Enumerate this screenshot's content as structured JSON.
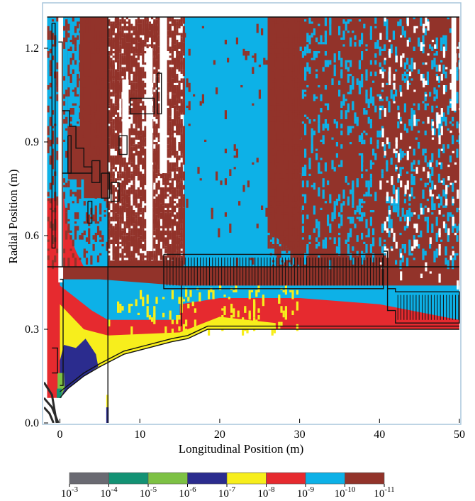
{
  "chart_data": {
    "type": "heatmap",
    "xlabel": "Longitudinal Position (m)",
    "ylabel": "Radial Position (m)",
    "xlim": [
      -2,
      50
    ],
    "ylim": [
      0,
      1.3
    ],
    "x_ticks": [
      {
        "v": 0,
        "label": "0"
      },
      {
        "v": 10,
        "label": "10"
      },
      {
        "v": 20,
        "label": "20"
      },
      {
        "v": 30,
        "label": "30"
      },
      {
        "v": 40,
        "label": "40"
      },
      {
        "v": 50,
        "label": "50"
      }
    ],
    "y_ticks": [
      {
        "v": 0,
        "label": "0.0"
      },
      {
        "v": 0.3,
        "label": "0.3"
      },
      {
        "v": 0.6,
        "label": "0.6"
      },
      {
        "v": 0.9,
        "label": "0.9"
      },
      {
        "v": 1.2,
        "label": "1.2"
      }
    ],
    "colorbar": {
      "colors": [
        "#6a6a72",
        "#139274",
        "#7dc144",
        "#2b2c8e",
        "#f7ee1c",
        "#e62a2f",
        "#0db1e7",
        "#92332a"
      ],
      "labels": [
        {
          "base": "10",
          "exp": "-3"
        },
        {
          "base": "10",
          "exp": "-4"
        },
        {
          "base": "10",
          "exp": "-5"
        },
        {
          "base": "10",
          "exp": "-6"
        },
        {
          "base": "10",
          "exp": "-7"
        },
        {
          "base": "10",
          "exp": "-8"
        },
        {
          "base": "10",
          "exp": "-9"
        },
        {
          "base": "10",
          "exp": "-10"
        },
        {
          "base": "10",
          "exp": "-11"
        }
      ]
    },
    "colors": {
      "brown": "#92332a",
      "cyan": "#0db1e7",
      "red": "#e62a2f",
      "yellow": "#f7ee1c",
      "navy": "#2b2c8e",
      "green": "#7dc144",
      "teal": "#139274",
      "gray": "#6a6a72",
      "frame": "#a9c6dc"
    },
    "regions": [
      {
        "color": "brown",
        "pts": [
          [
            -1.6,
            1.3
          ],
          [
            50,
            1.3
          ],
          [
            50,
            0.5
          ],
          [
            -1.6,
            0.5
          ]
        ]
      },
      {
        "color": "cyan",
        "pts": [
          [
            -1.6,
            1.3
          ],
          [
            1,
            1.3
          ],
          [
            1,
            0.78
          ],
          [
            3,
            0.78
          ],
          [
            3,
            0.72
          ],
          [
            6,
            0.72
          ],
          [
            6,
            0.5
          ],
          [
            -1.6,
            0.5
          ]
        ]
      },
      {
        "color": "cyan",
        "pts": [
          [
            15.5,
            1.3
          ],
          [
            26,
            1.3
          ],
          [
            26,
            0.62
          ],
          [
            29,
            0.55
          ],
          [
            30,
            0.5
          ],
          [
            15.5,
            0.5
          ]
        ]
      },
      {
        "color": "cyan",
        "pts": [
          [
            1,
            1.3
          ],
          [
            2.5,
            1.3
          ],
          [
            2.5,
            0.95
          ],
          [
            1,
            0.95
          ]
        ]
      },
      {
        "color": "red",
        "pts": [
          [
            -1.6,
            0.72
          ],
          [
            0.5,
            0.72
          ],
          [
            1,
            0.62
          ],
          [
            2,
            0.55
          ],
          [
            3,
            0.5
          ],
          [
            -1.6,
            0.5
          ]
        ]
      },
      {
        "color": "red",
        "pts": [
          [
            -1.6,
            0.5
          ],
          [
            0,
            0.5
          ],
          [
            0,
            0.08
          ],
          [
            -1.6,
            0.08
          ]
        ]
      },
      {
        "color": "brown",
        "pts": [
          [
            0,
            0.5
          ],
          [
            50,
            0.5
          ],
          [
            50,
            0.3
          ],
          [
            40,
            0.3
          ],
          [
            25,
            0.3
          ],
          [
            18.5,
            0.3
          ],
          [
            16,
            0.27
          ],
          [
            14,
            0.26
          ],
          [
            11,
            0.24
          ],
          [
            8,
            0.22
          ],
          [
            5,
            0.18
          ],
          [
            3,
            0.15
          ],
          [
            2,
            0.13
          ],
          [
            1,
            0.11
          ],
          [
            0,
            0.08
          ]
        ]
      },
      {
        "color": "cyan",
        "pts": [
          [
            0,
            0.46
          ],
          [
            5,
            0.46
          ],
          [
            15,
            0.44
          ],
          [
            25,
            0.44
          ],
          [
            35,
            0.44
          ],
          [
            50,
            0.44
          ],
          [
            50,
            0.3
          ],
          [
            25,
            0.3
          ],
          [
            18.5,
            0.3
          ],
          [
            16,
            0.27
          ],
          [
            14,
            0.26
          ],
          [
            11,
            0.24
          ],
          [
            8,
            0.22
          ],
          [
            5,
            0.18
          ],
          [
            3,
            0.15
          ],
          [
            2,
            0.13
          ],
          [
            1,
            0.11
          ],
          [
            0,
            0.08
          ]
        ]
      },
      {
        "color": "red",
        "pts": [
          [
            0,
            0.44
          ],
          [
            2,
            0.4
          ],
          [
            4,
            0.36
          ],
          [
            6,
            0.33
          ],
          [
            15,
            0.33
          ],
          [
            15,
            0.38
          ],
          [
            20,
            0.4
          ],
          [
            30,
            0.4
          ],
          [
            40,
            0.38
          ],
          [
            50,
            0.33
          ],
          [
            50,
            0.3
          ],
          [
            25,
            0.3
          ],
          [
            18.5,
            0.3
          ],
          [
            16,
            0.27
          ],
          [
            14,
            0.26
          ],
          [
            11,
            0.24
          ],
          [
            8,
            0.22
          ],
          [
            5,
            0.18
          ],
          [
            3,
            0.15
          ],
          [
            2,
            0.13
          ],
          [
            1,
            0.11
          ],
          [
            0,
            0.08
          ]
        ]
      },
      {
        "color": "yellow",
        "pts": [
          [
            0,
            0.38
          ],
          [
            1.5,
            0.34
          ],
          [
            3,
            0.3
          ],
          [
            6,
            0.28
          ],
          [
            15,
            0.29
          ],
          [
            20,
            0.34
          ],
          [
            27,
            0.32
          ],
          [
            27,
            0.3
          ],
          [
            18.5,
            0.3
          ],
          [
            16,
            0.27
          ],
          [
            14,
            0.26
          ],
          [
            11,
            0.24
          ],
          [
            8,
            0.22
          ],
          [
            5,
            0.18
          ],
          [
            3,
            0.15
          ],
          [
            2,
            0.13
          ],
          [
            1,
            0.11
          ],
          [
            0,
            0.08
          ]
        ]
      },
      {
        "color": "navy",
        "pts": [
          [
            0.5,
            0.25
          ],
          [
            2,
            0.24
          ],
          [
            3.2,
            0.27
          ],
          [
            4.5,
            0.22
          ],
          [
            4.8,
            0.18
          ],
          [
            3,
            0.15
          ],
          [
            2,
            0.13
          ],
          [
            1,
            0.11
          ],
          [
            0.3,
            0.09
          ],
          [
            0,
            0.1
          ],
          [
            0,
            0.2
          ]
        ]
      },
      {
        "color": "green",
        "pts": [
          [
            -0.3,
            0.16
          ],
          [
            0.5,
            0.16
          ],
          [
            0.6,
            0.11
          ],
          [
            0,
            0.08
          ],
          [
            -0.3,
            0.09
          ]
        ]
      },
      {
        "color": "teal",
        "pts": [
          [
            -0.4,
            0.11
          ],
          [
            0.2,
            0.11
          ],
          [
            0.2,
            0.08
          ],
          [
            -0.4,
            0.08
          ]
        ]
      },
      {
        "color": "navy",
        "pts": [
          [
            5.8,
            0.05
          ],
          [
            6.1,
            0.05
          ],
          [
            6.1,
            0.0
          ],
          [
            5.8,
            0.0
          ]
        ]
      },
      {
        "color": "yellow",
        "pts": [
          [
            5.8,
            0.09
          ],
          [
            6.1,
            0.09
          ],
          [
            6.1,
            0.05
          ],
          [
            5.8,
            0.05
          ]
        ]
      }
    ],
    "white_zones": [
      [
        6,
        0.52,
        15.5,
        1.3
      ]
    ],
    "white_strips": [
      [
        -0.2,
        0.45,
        0.4,
        1.3
      ],
      [
        10.8,
        0.55,
        11.6,
        1.2
      ],
      [
        12.5,
        0.8,
        13.4,
        1.3
      ],
      [
        7.8,
        0.85,
        8.6,
        1.1
      ],
      [
        49,
        1.0,
        49.6,
        1.3
      ]
    ],
    "speckle": [
      {
        "region": [
          6,
          0.52,
          15.5,
          1.3
        ],
        "color": "brown",
        "density": 0.55
      },
      {
        "region": [
          30,
          0.52,
          50,
          1.3
        ],
        "color": "cyan",
        "density": 0.09
      },
      {
        "region": [
          26,
          0.5,
          30,
          1.3
        ],
        "color": "brown",
        "density": 0.3
      },
      {
        "region": [
          15.5,
          0.52,
          26,
          1.3
        ],
        "color": "brown",
        "density": 0.015
      },
      {
        "region": [
          -1.6,
          0.52,
          6,
          1.3
        ],
        "color": "brown",
        "density": 0.14
      },
      {
        "region": [
          40,
          0.45,
          50,
          1.3
        ],
        "color": "white",
        "density": 0.04
      },
      {
        "region": [
          6,
          0.3,
          30,
          0.44
        ],
        "color": "yellow",
        "density": 0.06
      }
    ],
    "outlines": [
      [
        [
          -1.6,
          1.3
        ],
        [
          50,
          1.3
        ]
      ],
      [
        [
          -1.6,
          0.5
        ],
        [
          50,
          0.5
        ]
      ],
      [
        [
          6,
          1.3
        ],
        [
          6,
          0.0
        ]
      ],
      [
        [
          -1,
          1.28
        ],
        [
          -0.6,
          1.28
        ],
        [
          -0.6,
          0.56
        ],
        [
          -1,
          0.56
        ],
        [
          -1,
          1.28
        ]
      ],
      [
        [
          -0.2,
          1.22
        ],
        [
          0.3,
          1.22
        ],
        [
          0.3,
          0.5
        ]
      ],
      [
        [
          0.3,
          1.0
        ],
        [
          1.2,
          1.0
        ],
        [
          1.2,
          0.95
        ],
        [
          2,
          0.95
        ],
        [
          2,
          0.88
        ],
        [
          3,
          0.88
        ],
        [
          3,
          0.82
        ],
        [
          4,
          0.82
        ],
        [
          4,
          0.8
        ],
        [
          0.3,
          0.8
        ]
      ],
      [
        [
          1,
          0.92
        ],
        [
          1.4,
          0.92
        ],
        [
          1.4,
          0.8
        ],
        [
          1,
          0.8
        ],
        [
          1,
          0.92
        ]
      ],
      [
        [
          4,
          0.84
        ],
        [
          5,
          0.84
        ],
        [
          5,
          0.77
        ],
        [
          4,
          0.77
        ],
        [
          4,
          0.84
        ]
      ],
      [
        [
          5.2,
          0.8
        ],
        [
          6.2,
          0.8
        ],
        [
          6.2,
          0.72
        ],
        [
          5.2,
          0.72
        ],
        [
          5.2,
          0.8
        ]
      ],
      [
        [
          3.5,
          0.71
        ],
        [
          4,
          0.71
        ],
        [
          4,
          0.64
        ],
        [
          3.5,
          0.64
        ],
        [
          3.5,
          0.71
        ]
      ],
      [
        [
          6.4,
          0.77
        ],
        [
          7.4,
          0.77
        ],
        [
          7.4,
          0.71
        ],
        [
          6.4,
          0.71
        ],
        [
          6.4,
          0.77
        ]
      ],
      [
        [
          7.4,
          0.92
        ],
        [
          8.4,
          0.92
        ],
        [
          8.4,
          0.86
        ],
        [
          7.4,
          0.86
        ],
        [
          7.4,
          0.92
        ]
      ],
      [
        [
          8.8,
          1.04
        ],
        [
          11.8,
          1.04
        ],
        [
          11.8,
          0.99
        ],
        [
          8.8,
          0.99
        ],
        [
          8.8,
          1.04
        ]
      ],
      [
        [
          12.2,
          1.12
        ],
        [
          12.7,
          1.12
        ],
        [
          12.7,
          0.99
        ],
        [
          12.2,
          0.99
        ],
        [
          12.2,
          1.12
        ]
      ],
      [
        [
          0,
          0.46
        ],
        [
          0.4,
          0.46
        ],
        [
          0.4,
          0.12
        ],
        [
          0,
          0.12
        ]
      ],
      [
        [
          -1,
          0.24
        ],
        [
          -0.3,
          0.24
        ],
        [
          -0.3,
          0.16
        ],
        [
          -1,
          0.16
        ]
      ],
      [
        [
          0,
          0.1
        ],
        [
          1,
          0.12
        ],
        [
          2,
          0.14
        ],
        [
          3,
          0.16
        ],
        [
          5,
          0.19
        ],
        [
          8,
          0.23
        ],
        [
          11,
          0.25
        ],
        [
          14,
          0.27
        ],
        [
          16,
          0.28
        ],
        [
          18.5,
          0.31
        ],
        [
          50,
          0.31
        ]
      ],
      [
        [
          0,
          0.08
        ],
        [
          1,
          0.11
        ],
        [
          2,
          0.13
        ],
        [
          3,
          0.15
        ],
        [
          5,
          0.18
        ],
        [
          8,
          0.22
        ],
        [
          11,
          0.24
        ],
        [
          14,
          0.26
        ],
        [
          16,
          0.27
        ],
        [
          18.5,
          0.3
        ],
        [
          50,
          0.3
        ]
      ],
      [
        [
          13,
          0.54
        ],
        [
          40.5,
          0.54
        ],
        [
          40.5,
          0.43
        ],
        [
          13,
          0.43
        ],
        [
          13,
          0.54
        ]
      ],
      [
        [
          40.5,
          0.55
        ],
        [
          41,
          0.55
        ],
        [
          41,
          0.43
        ],
        [
          42,
          0.43
        ],
        [
          42,
          0.42
        ],
        [
          50,
          0.42
        ],
        [
          50,
          0.32
        ],
        [
          42,
          0.32
        ],
        [
          42,
          0.36
        ],
        [
          41,
          0.36
        ],
        [
          41,
          0.43
        ]
      ],
      [
        [
          15.2,
          0.44
        ],
        [
          15.2,
          0.31
        ]
      ]
    ],
    "hatch_ranges": [
      [
        13.4,
        40.4,
        0.44,
        0.53
      ],
      [
        42.3,
        50,
        0.33,
        0.41
      ]
    ],
    "beam_lines": [
      [
        [
          -2,
          0.13
        ],
        [
          -1,
          0.09
        ],
        [
          -0.4,
          0.0
        ]
      ],
      [
        [
          -2,
          0.08
        ],
        [
          -1,
          0.05
        ],
        [
          -0.2,
          0.0
        ]
      ],
      [
        [
          -2,
          0.05
        ],
        [
          -1.3,
          0.03
        ],
        [
          -0.8,
          0.0
        ]
      ]
    ]
  }
}
